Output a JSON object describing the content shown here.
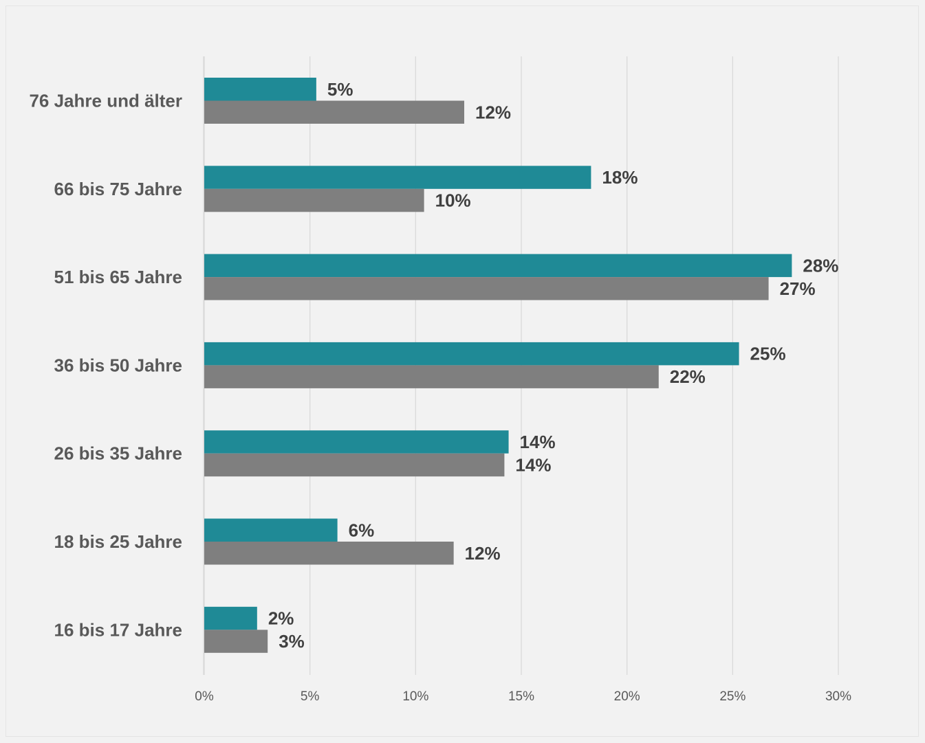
{
  "chart_data": {
    "type": "bar",
    "orientation": "horizontal",
    "categories": [
      "76 Jahre und älter",
      "66 bis 75 Jahre",
      "51 bis 65 Jahre",
      "36 bis 50 Jahre",
      "26 bis 35 Jahre",
      "18 bis 25 Jahre",
      "16 bis 17 Jahre"
    ],
    "series": [
      {
        "color": "#1f8a96",
        "values": [
          5.3,
          18.3,
          27.8,
          25.3,
          14.4,
          6.3,
          2.5
        ],
        "labels": [
          "5%",
          "18%",
          "28%",
          "25%",
          "14%",
          "6%",
          "2%"
        ]
      },
      {
        "color": "#7f7f7f",
        "values": [
          12.3,
          10.4,
          26.7,
          21.5,
          14.2,
          11.8,
          3.0
        ],
        "labels": [
          "12%",
          "10%",
          "27%",
          "22%",
          "14%",
          "12%",
          "3%"
        ]
      }
    ],
    "xlim": [
      0,
      30
    ],
    "xticks": [
      "0%",
      "5%",
      "10%",
      "15%",
      "20%",
      "25%",
      "30%"
    ],
    "grid": "vertical",
    "legend": "none",
    "title": "",
    "xlabel": "",
    "ylabel": ""
  }
}
